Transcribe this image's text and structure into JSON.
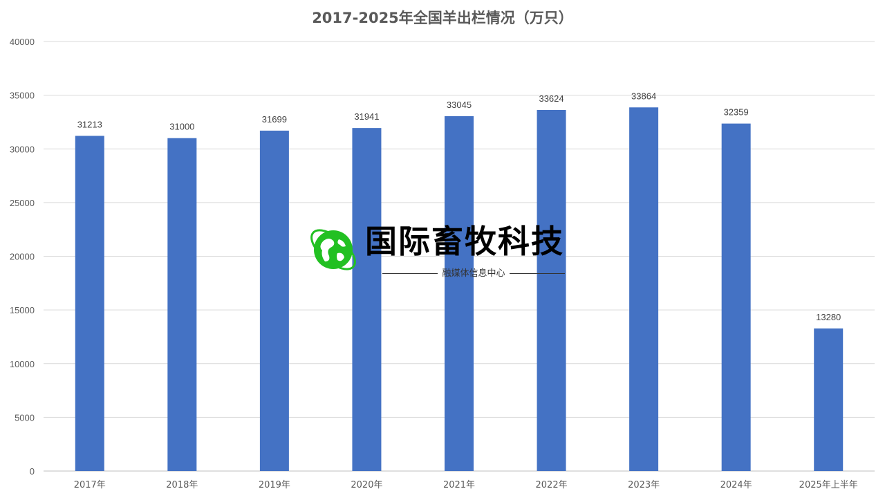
{
  "chart_data": {
    "type": "bar",
    "title": "2017-2025年全国羊出栏情况（万只）",
    "categories": [
      "2017年",
      "2018年",
      "2019年",
      "2020年",
      "2021年",
      "2022年",
      "2023年",
      "2024年",
      "2025年上半年"
    ],
    "values": [
      31213,
      31000,
      31699,
      31941,
      33045,
      33624,
      33864,
      32359,
      13280
    ],
    "data_labels": [
      "31213",
      "31000",
      "31699",
      "31941",
      "33045",
      "33624",
      "33864",
      "32359",
      "13280"
    ],
    "ylim": [
      0,
      40000
    ],
    "yticks": [
      "0",
      "5000",
      "10000",
      "15000",
      "20000",
      "25000",
      "30000",
      "35000",
      "40000"
    ],
    "xlabel": "",
    "ylabel": "",
    "grid": true,
    "bar_color": "#4472C4"
  },
  "watermark": {
    "main": "国际畜牧科技",
    "sub": "融媒体信息中心",
    "icon": "green-globe-icon",
    "color": "#22c022"
  }
}
